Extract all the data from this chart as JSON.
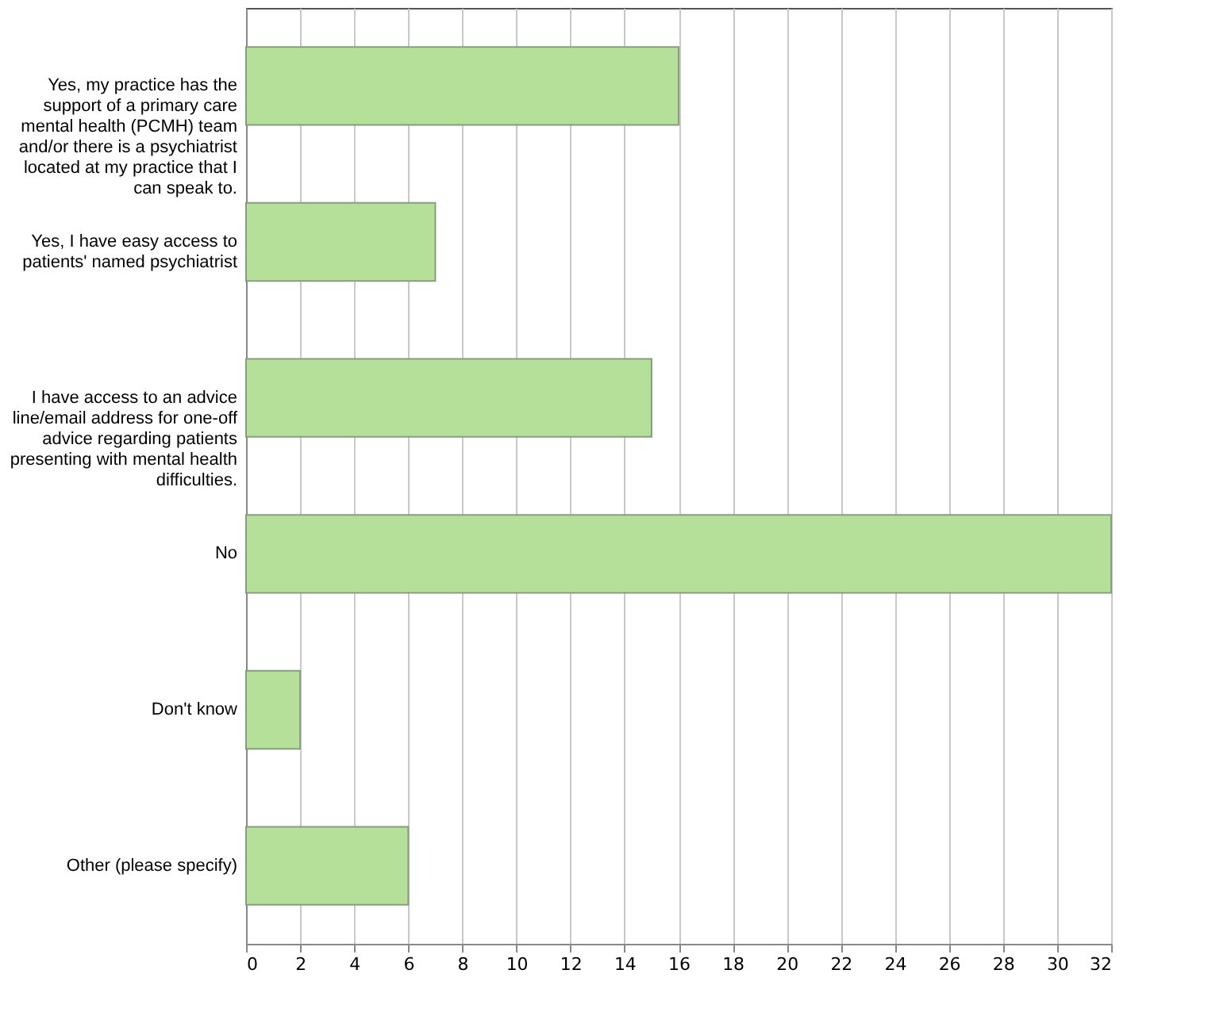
{
  "chart_data": {
    "type": "bar",
    "orientation": "horizontal",
    "categories": [
      "Yes, my practice has the support of a primary care mental health (PCMH) team and/or there is a psychiatrist located at my practice that I can speak to.",
      "Yes, I have easy access to patients' named psychiatrist",
      "I have access to an advice line/email address for one-off advice regarding patients presenting with mental health difficulties.",
      "No",
      "Don't know",
      "Other (please specify)"
    ],
    "values": [
      16,
      7,
      15,
      32,
      2,
      6
    ],
    "color": "#b4e09a",
    "xlim": [
      0,
      32
    ],
    "xticks": [
      0,
      2,
      4,
      6,
      8,
      10,
      12,
      14,
      16,
      18,
      20,
      22,
      24,
      26,
      28,
      30,
      32
    ],
    "grid": "x"
  }
}
